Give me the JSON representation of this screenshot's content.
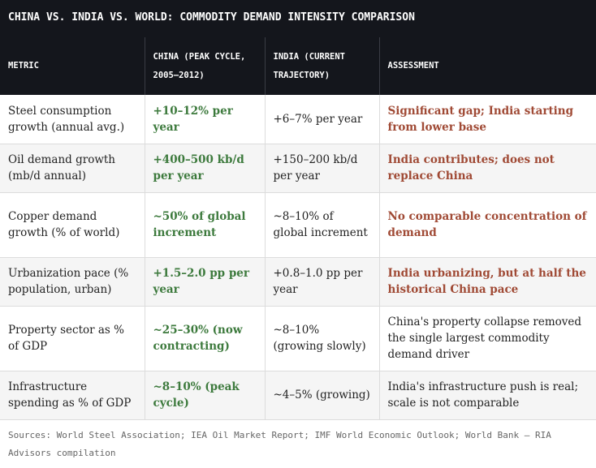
{
  "title": "CHINA VS. INDIA VS. WORLD: COMMODITY DEMAND INTENSITY COMPARISON",
  "columns": [
    "METRIC",
    "CHINA (PEAK CYCLE, 2005–2012)",
    "INDIA (CURRENT TRAJECTORY)",
    "ASSESSMENT"
  ],
  "rows": [
    {
      "metric": "Steel consumption growth (annual avg.)",
      "china": "+10–12% per year",
      "india": "+6–7% per year",
      "assessment": "Significant gap; India starting from lower base"
    },
    {
      "metric": "Oil demand growth (mb/d annual)",
      "china": "+400–500 kb/d per year",
      "india": "+150–200 kb/d per year",
      "assessment": "India contributes; does not replace China"
    },
    {
      "metric": "Copper demand growth (% of world)",
      "china": "~50% of global increment",
      "india": "~8–10% of global increment",
      "assessment": "No comparable concentration of demand"
    },
    {
      "metric": "Urbanization pace (% population, urban)",
      "china": "+1.5–2.0 pp per year",
      "india": "+0.8–1.0 pp per year",
      "assessment": "India urbanizing, but at half the historical China pace"
    },
    {
      "metric": "Property sector as % of GDP",
      "china": "~25–30% (now contracting)",
      "india": "~8–10% (growing slowly)",
      "assessment": "China's property collapse removed the single largest commodity demand driver"
    },
    {
      "metric": "Infrastructure spending as % of GDP",
      "china": "~8–10% (peak cycle)",
      "india": "~4–5% (growing)",
      "assessment": "India's infrastructure push is real; scale is not comparable"
    }
  ],
  "sources": "Sources: World Steel Association; IEA Oil Market Report; IMF World Economic Outlook; World Bank — RIA Advisors compilation",
  "colors": {
    "header_bg": "#14161c",
    "china_text": "#3d7a3d",
    "assessment_highlight": "#a04a35",
    "alt_row_bg": "#f5f5f5"
  }
}
